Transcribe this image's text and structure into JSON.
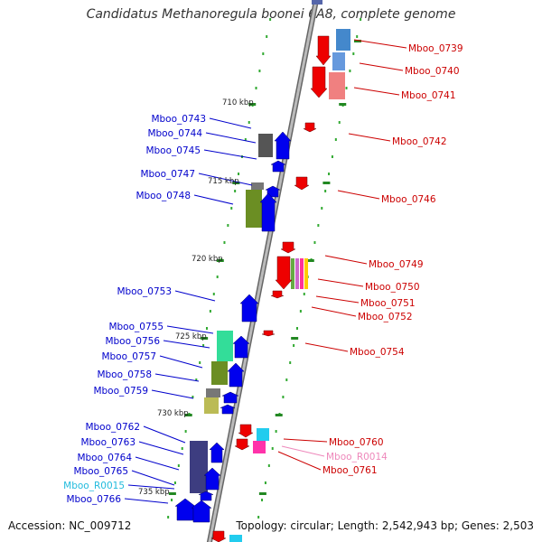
{
  "title": "Candidatus Methanoregula boonei 6A8, complete genome",
  "footer": {
    "accession": "Accession: NC_009712",
    "topology": "Topology: circular; Length: 2,542,943 bp; Genes: 2,503"
  },
  "colors": {
    "forward_label": "#0000cc",
    "reverse_label": "#cc0000",
    "rna_label_forward": "#22bbdd",
    "rna_label_reverse": "#ee88bb",
    "backbone": "#888888",
    "tick": "#228822"
  },
  "ruler": [
    "710 kbp",
    "715 kbp",
    "720 kbp",
    "725 kbp",
    "730 kbp",
    "735 kbp"
  ],
  "forward_labels": [
    "Mboo_0743",
    "Mboo_0744",
    "Mboo_0745",
    "Mboo_0747",
    "Mboo_0748",
    "Mboo_0753",
    "Mboo_0755",
    "Mboo_0756",
    "Mboo_0757",
    "Mboo_0758",
    "Mboo_0759",
    "Mboo_0762",
    "Mboo_0763",
    "Mboo_0764",
    "Mboo_0765",
    "Mboo_R0015",
    "Mboo_0766"
  ],
  "reverse_labels": [
    "Mboo_0739",
    "Mboo_0740",
    "Mboo_0741",
    "Mboo_0742",
    "Mboo_0746",
    "Mboo_0749",
    "Mboo_0750",
    "Mboo_0751",
    "Mboo_0752",
    "Mboo_0754",
    "Mboo_0760",
    "Mboo_R0014",
    "Mboo_0761"
  ]
}
